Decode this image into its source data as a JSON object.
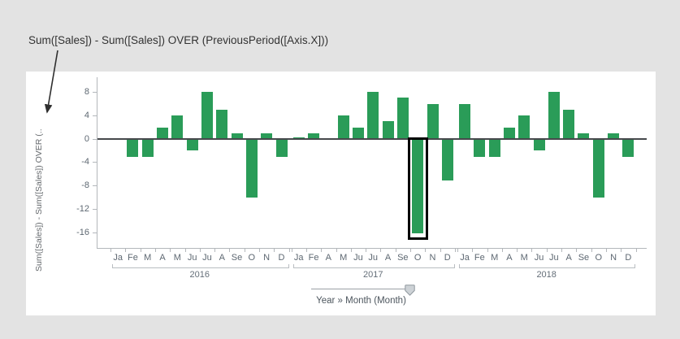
{
  "annotation": {
    "text": "Sum([Sales]) - Sum([Sales]) OVER (PreviousPeriod([Axis.X]))"
  },
  "y_axis": {
    "title_truncated": "Sum([Sales]) - Sum([Sales]) OVER (..",
    "ticks": [
      8,
      4,
      0,
      -4,
      -8,
      -12,
      -16
    ]
  },
  "x_axis": {
    "slider_label": "Year » Month (Month)"
  },
  "colors": {
    "background": "#e3e3e3",
    "card": "#ffffff",
    "bar_green": "#2a9c58",
    "zero_line": "#46494c",
    "axis_gray": "#b3b7bb",
    "label_gray": "#5e6872",
    "marked_outline": "#000000"
  },
  "chart_data": {
    "type": "bar",
    "ylabel": "Sum([Sales]) - Sum([Sales]) OVER (PreviousPeriod([Axis.X]))",
    "xlabel": "Year » Month (Month)",
    "ylim": [
      -18.5,
      10.5
    ],
    "y_ticks": [
      8,
      4,
      0,
      -4,
      -8,
      -12,
      -16
    ],
    "grid": false,
    "legend": "none",
    "bar_color": "#2a9c58",
    "groups": [
      {
        "year": "2016",
        "months": [
          "Ja",
          "Fe",
          "M",
          "A",
          "M",
          "Ju",
          "Ju",
          "A",
          "Se",
          "O",
          "N",
          "D"
        ],
        "values": [
          null,
          -3,
          -3,
          2,
          4,
          -2,
          8,
          5,
          1,
          -10,
          1,
          -3
        ]
      },
      {
        "year": "2017",
        "months": [
          "Ja",
          "Fe",
          "A",
          "M",
          "Ju",
          "Ju",
          "A",
          "Se",
          "O",
          "N",
          "D"
        ],
        "values": [
          0.3,
          1,
          null,
          4,
          2,
          8,
          3,
          7,
          -16,
          6,
          -7
        ],
        "marked_index": 8
      },
      {
        "year": "2018",
        "months": [
          "Ja",
          "Fe",
          "M",
          "A",
          "M",
          "Ju",
          "Ju",
          "A",
          "Se",
          "O",
          "N",
          "D"
        ],
        "values": [
          6,
          -3,
          -3,
          2,
          4,
          -2,
          8,
          5,
          1,
          -10,
          1,
          -3
        ]
      }
    ],
    "marked_point": {
      "year": "2017",
      "month": "O",
      "value": -16
    }
  }
}
